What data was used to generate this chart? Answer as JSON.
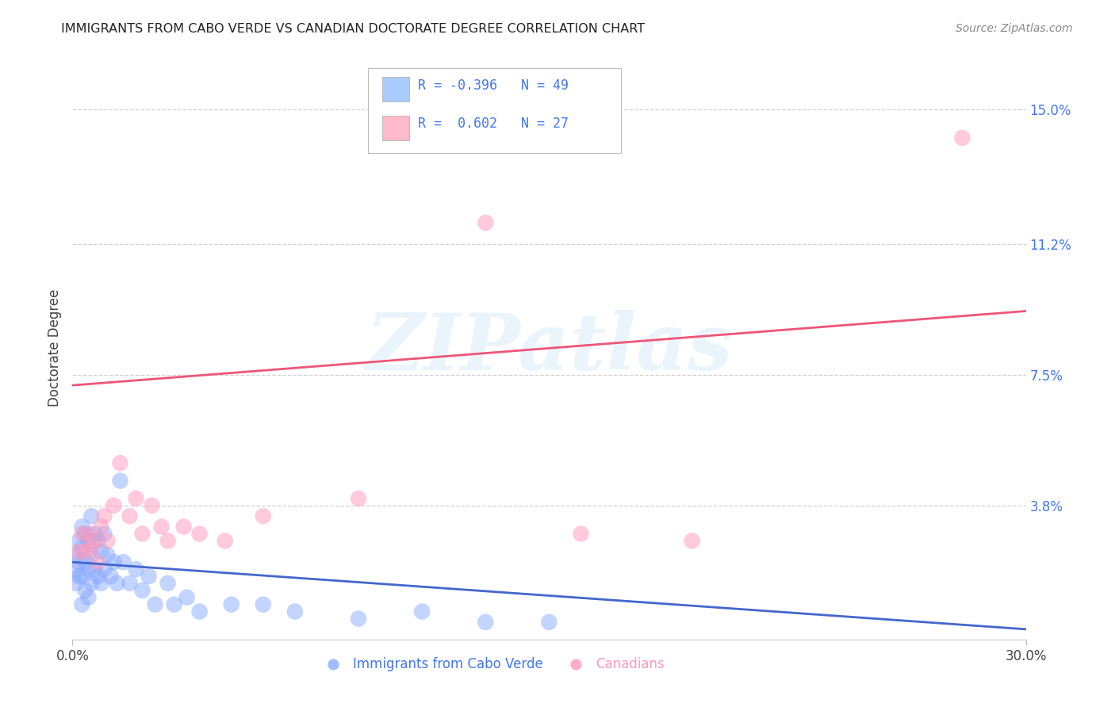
{
  "title": "IMMIGRANTS FROM CABO VERDE VS CANADIAN DOCTORATE DEGREE CORRELATION CHART",
  "source": "Source: ZipAtlas.com",
  "ylabel": "Doctorate Degree",
  "xlim": [
    0.0,
    0.3
  ],
  "ylim": [
    0.0,
    0.165
  ],
  "xtick_vals": [
    0.0,
    0.3
  ],
  "xtick_labels": [
    "0.0%",
    "30.0%"
  ],
  "ytick_vals": [
    0.0,
    0.038,
    0.075,
    0.112,
    0.15
  ],
  "ytick_labels": [
    "",
    "3.8%",
    "7.5%",
    "11.2%",
    "15.0%"
  ],
  "grid_color": "#cccccc",
  "bg_color": "#ffffff",
  "blue_face": "#88aaff",
  "pink_face": "#ff99bb",
  "blue_line": "#4466cc",
  "pink_line": "#ee5577",
  "blue_scatter_x": [
    0.001,
    0.001,
    0.001,
    0.002,
    0.002,
    0.002,
    0.003,
    0.003,
    0.003,
    0.003,
    0.004,
    0.004,
    0.004,
    0.005,
    0.005,
    0.005,
    0.006,
    0.006,
    0.006,
    0.007,
    0.007,
    0.008,
    0.008,
    0.009,
    0.009,
    0.01,
    0.01,
    0.011,
    0.012,
    0.013,
    0.014,
    0.015,
    0.016,
    0.018,
    0.02,
    0.022,
    0.024,
    0.026,
    0.03,
    0.032,
    0.036,
    0.04,
    0.05,
    0.06,
    0.07,
    0.09,
    0.11,
    0.13,
    0.15
  ],
  "blue_scatter_y": [
    0.024,
    0.02,
    0.016,
    0.028,
    0.022,
    0.018,
    0.032,
    0.026,
    0.018,
    0.01,
    0.03,
    0.022,
    0.014,
    0.028,
    0.02,
    0.012,
    0.035,
    0.024,
    0.016,
    0.03,
    0.02,
    0.028,
    0.018,
    0.025,
    0.016,
    0.03,
    0.02,
    0.024,
    0.018,
    0.022,
    0.016,
    0.045,
    0.022,
    0.016,
    0.02,
    0.014,
    0.018,
    0.01,
    0.016,
    0.01,
    0.012,
    0.008,
    0.01,
    0.01,
    0.008,
    0.006,
    0.008,
    0.005,
    0.005
  ],
  "pink_scatter_x": [
    0.002,
    0.003,
    0.004,
    0.005,
    0.006,
    0.007,
    0.008,
    0.009,
    0.01,
    0.011,
    0.013,
    0.015,
    0.018,
    0.02,
    0.022,
    0.025,
    0.028,
    0.03,
    0.035,
    0.04,
    0.048,
    0.06,
    0.09,
    0.13,
    0.16,
    0.195,
    0.28
  ],
  "pink_scatter_y": [
    0.025,
    0.03,
    0.025,
    0.03,
    0.026,
    0.028,
    0.022,
    0.032,
    0.035,
    0.028,
    0.038,
    0.05,
    0.035,
    0.04,
    0.03,
    0.038,
    0.032,
    0.028,
    0.032,
    0.03,
    0.028,
    0.035,
    0.04,
    0.118,
    0.03,
    0.028,
    0.142
  ],
  "pink_line_x0": 0.0,
  "pink_line_y0": 0.072,
  "pink_line_x1": 0.3,
  "pink_line_y1": 0.093,
  "blue_line_x0": 0.0,
  "blue_line_y0": 0.022,
  "blue_line_x1": 0.3,
  "blue_line_y1": 0.003,
  "watermark": "ZIPatlas",
  "legend_text_blue": "R = -0.396   N = 49",
  "legend_text_pink": "R =  0.602   N = 27",
  "legend_blue_face": "#aaccff",
  "legend_pink_face": "#ffbbcc",
  "legend_text_color": "#4477ee",
  "axis_text_color": "#444444",
  "ytick_color": "#4477ee",
  "source_color": "#888888"
}
